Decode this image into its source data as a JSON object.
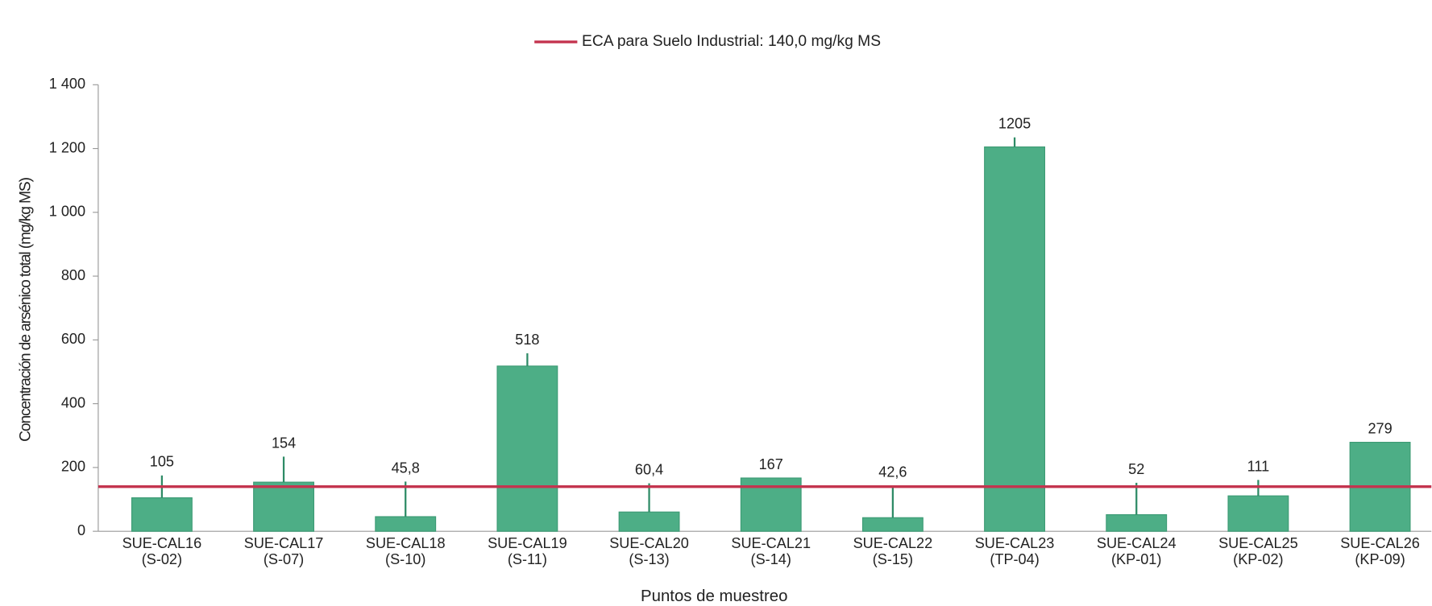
{
  "chart_data": {
    "type": "bar",
    "categories": [
      [
        "SUE-CAL16",
        "(S-02)"
      ],
      [
        "SUE-CAL17",
        "(S-07)"
      ],
      [
        "SUE-CAL18",
        "(S-10)"
      ],
      [
        "SUE-CAL19",
        "(S-11)"
      ],
      [
        "SUE-CAL20",
        "(S-13)"
      ],
      [
        "SUE-CAL21",
        "(S-14)"
      ],
      [
        "SUE-CAL22",
        "(S-15)"
      ],
      [
        "SUE-CAL23",
        "(TP-04)"
      ],
      [
        "SUE-CAL24",
        "(KP-01)"
      ],
      [
        "SUE-CAL25",
        "(KP-02)"
      ],
      [
        "SUE-CAL26",
        "(KP-09)"
      ]
    ],
    "values": [
      105,
      154,
      45.8,
      518,
      60.4,
      167,
      42.6,
      1205,
      52,
      111,
      279
    ],
    "value_labels": [
      "105",
      "154",
      "45,8",
      "518",
      "60,4",
      "167",
      "42,6",
      "1205",
      "52",
      "111",
      "279"
    ],
    "errors": [
      70,
      80,
      110,
      40,
      90,
      null,
      100,
      30,
      100,
      50,
      null
    ],
    "color": "#4dae86",
    "reference": {
      "name": "ECA para Suelo Industrial: 140,0 mg/kg MS",
      "value": 140,
      "color": "#c4344f"
    },
    "ylim": [
      0,
      1400
    ],
    "yticks": [
      0,
      200,
      400,
      600,
      800,
      {
        "value": 1000,
        "label": "1 000"
      },
      {
        "value": 1200,
        "label": "1 200"
      },
      {
        "value": 1400,
        "label": "1 400"
      }
    ],
    "xlabel": "Puntos de muestreo",
    "ylabel": "Concentración de arsénico total (mg/kg MS)",
    "legend": "top"
  }
}
